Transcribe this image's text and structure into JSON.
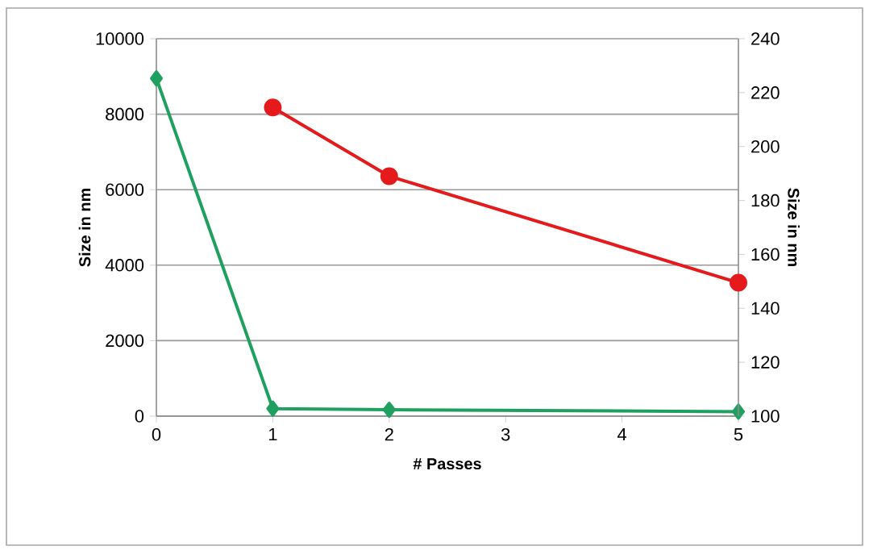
{
  "chart_data": {
    "type": "line",
    "xlabel": "# Passes",
    "ylabel": "Size in nm",
    "y2label": "Size in nm",
    "xlim": [
      0,
      5
    ],
    "xticks": [
      0,
      1,
      2,
      3,
      4,
      5
    ],
    "ylim": [
      0,
      10000
    ],
    "yticks": [
      0,
      2000,
      4000,
      6000,
      8000,
      10000
    ],
    "y2lim": [
      100,
      240
    ],
    "y2ticks": [
      100,
      120,
      140,
      160,
      180,
      200,
      220,
      240
    ],
    "grid": "y",
    "series": [
      {
        "color": "#1fa060",
        "x": [
          0,
          1,
          2,
          5
        ],
        "values": [
          8950,
          200,
          170,
          120
        ],
        "marker": "diamond"
      },
      {
        "color": "#e41a1c",
        "x": [
          1,
          2,
          5
        ],
        "values": [
          214.5,
          189,
          149.5
        ],
        "marker": "circle",
        "axis": "y2"
      }
    ]
  }
}
